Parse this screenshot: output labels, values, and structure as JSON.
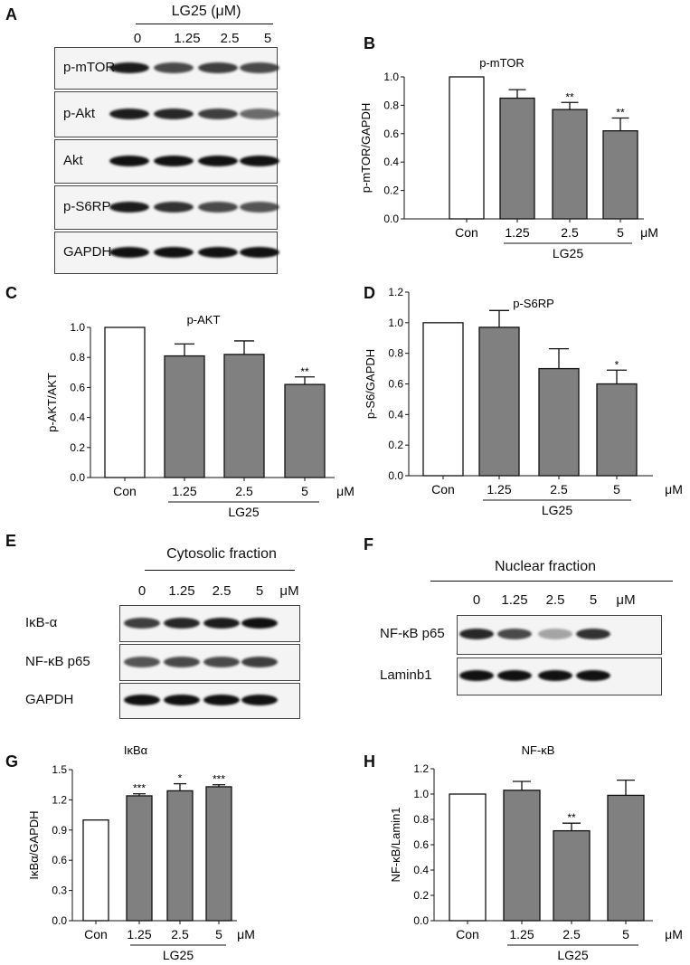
{
  "panel_labels": [
    "A",
    "B",
    "C",
    "D",
    "E",
    "F",
    "G",
    "H"
  ],
  "panel_A": {
    "header": "LG25 (μM)",
    "lanes": [
      "0",
      "1.25",
      "2.5",
      "5"
    ],
    "rows": [
      "p-mTOR",
      "p-Akt",
      "Akt",
      "p-S6RP",
      "GAPDH"
    ]
  },
  "panel_E": {
    "header": "Cytosolic fraction",
    "lanes": [
      "0",
      "1.25",
      "2.5",
      "5"
    ],
    "unit": "μM",
    "rows": [
      "IκB-α",
      "NF-κB p65",
      "GAPDH"
    ]
  },
  "panel_F": {
    "header": "Nuclear fraction",
    "lanes": [
      "0",
      "1.25",
      "2.5",
      "5"
    ],
    "unit": "μM",
    "rows": [
      "NF-κB p65",
      "Laminb1"
    ]
  },
  "chart_data": [
    {
      "panel": "B",
      "type": "bar",
      "title": "p-mTOR",
      "ylabel": "p-mTOR/GAPDH",
      "categories": [
        "Con",
        "1.25",
        "2.5",
        "5"
      ],
      "unit": "μM",
      "group_label": "LG25",
      "values": [
        1.0,
        0.85,
        0.77,
        0.62
      ],
      "errors": [
        0,
        0.06,
        0.05,
        0.09
      ],
      "significance": [
        "",
        "",
        "**",
        "**"
      ],
      "ylim": [
        0,
        1.0
      ],
      "yticks": [
        "0.0",
        "0.2",
        "0.4",
        "0.6",
        "0.8",
        "1.0"
      ],
      "bar_colors": [
        "#ffffff",
        "#808080",
        "#808080",
        "#808080"
      ]
    },
    {
      "panel": "C",
      "type": "bar",
      "title": "p-AKT",
      "ylabel": "p-AKT/AKT",
      "categories": [
        "Con",
        "1.25",
        "2.5",
        "5"
      ],
      "unit": "μM",
      "group_label": "LG25",
      "values": [
        1.0,
        0.81,
        0.82,
        0.62
      ],
      "errors": [
        0,
        0.08,
        0.09,
        0.05
      ],
      "significance": [
        "",
        "",
        "",
        "**"
      ],
      "ylim": [
        0,
        1.0
      ],
      "yticks": [
        "0.0",
        "0.2",
        "0.4",
        "0.6",
        "0.8",
        "1.0"
      ],
      "bar_colors": [
        "#ffffff",
        "#808080",
        "#808080",
        "#808080"
      ]
    },
    {
      "panel": "D",
      "type": "bar",
      "title": "p-S6RP",
      "ylabel": "p-S6/GAPDH",
      "categories": [
        "Con",
        "1.25",
        "2.5",
        "5"
      ],
      "unit": "μM",
      "group_label": "LG25",
      "values": [
        1.0,
        0.97,
        0.7,
        0.6
      ],
      "errors": [
        0,
        0.11,
        0.13,
        0.09
      ],
      "significance": [
        "",
        "",
        "",
        "*"
      ],
      "ylim": [
        0,
        1.2
      ],
      "yticks": [
        "0.0",
        "0.2",
        "0.4",
        "0.6",
        "0.8",
        "1.0",
        "1.2"
      ],
      "bar_colors": [
        "#ffffff",
        "#808080",
        "#808080",
        "#808080"
      ]
    },
    {
      "panel": "G",
      "type": "bar",
      "title": "IκBα",
      "ylabel": "IκBα/GAPDH",
      "categories": [
        "Con",
        "1.25",
        "2.5",
        "5"
      ],
      "unit": "μM",
      "group_label": "LG25",
      "values": [
        1.0,
        1.24,
        1.29,
        1.33
      ],
      "errors": [
        0,
        0.02,
        0.07,
        0.02
      ],
      "significance": [
        "",
        "***",
        "*",
        "***"
      ],
      "ylim": [
        0,
        1.5
      ],
      "yticks": [
        "0.0",
        "0.3",
        "0.6",
        "0.9",
        "1.2",
        "1.5"
      ],
      "bar_colors": [
        "#ffffff",
        "#808080",
        "#808080",
        "#808080"
      ]
    },
    {
      "panel": "H",
      "type": "bar",
      "title": "NF-κB",
      "ylabel": "NF-κB/Lamin1",
      "categories": [
        "Con",
        "1.25",
        "2.5",
        "5"
      ],
      "unit": "μM",
      "group_label": "LG25",
      "values": [
        1.0,
        1.03,
        0.71,
        0.99
      ],
      "errors": [
        0,
        0.07,
        0.06,
        0.12
      ],
      "significance": [
        "",
        "",
        "**",
        ""
      ],
      "ylim": [
        0,
        1.2
      ],
      "yticks": [
        "0.0",
        "0.2",
        "0.4",
        "0.6",
        "0.8",
        "1.0",
        "1.2"
      ],
      "bar_colors": [
        "#ffffff",
        "#808080",
        "#808080",
        "#808080"
      ]
    }
  ]
}
